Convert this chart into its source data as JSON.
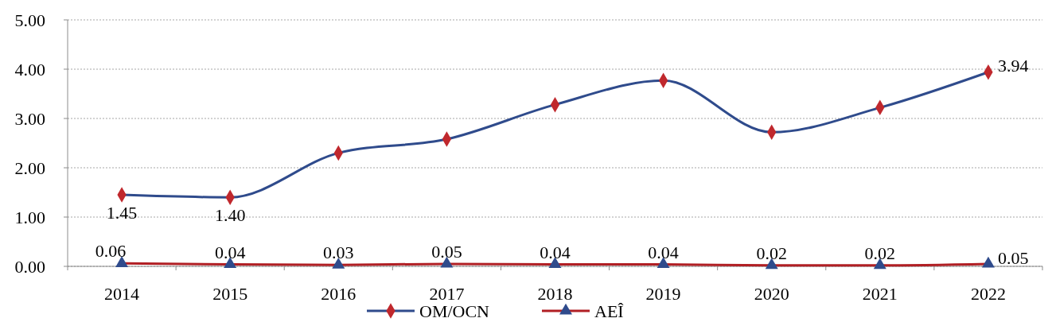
{
  "chart_data": {
    "type": "line",
    "categories": [
      "2014",
      "2015",
      "2016",
      "2017",
      "2018",
      "2019",
      "2020",
      "2021",
      "2022"
    ],
    "ylim": [
      0,
      5
    ],
    "yticks": [
      {
        "value": 0,
        "label": "0.00"
      },
      {
        "value": 1,
        "label": "1.00"
      },
      {
        "value": 2,
        "label": "2.00"
      },
      {
        "value": 3,
        "label": "3.00"
      },
      {
        "value": 4,
        "label": "4.00"
      },
      {
        "value": 5,
        "label": "5.00"
      }
    ],
    "grid": "y",
    "legend": "bottom",
    "line_style": "solid",
    "series": [
      {
        "name": "OM/OCN",
        "color": "#2f4b8c",
        "marker": "diamond",
        "colors": [
          "#c0282d",
          "#c0282d",
          "#c0282d",
          "#c0282d",
          "#c0282d",
          "#c0282d",
          "#c0282d",
          "#c0282d",
          "#c0282d"
        ],
        "values": [
          1.45,
          1.4,
          2.3,
          2.58,
          3.28,
          3.77,
          2.72,
          3.22,
          3.94
        ],
        "value_labels": [
          "1.45",
          "1.40",
          null,
          null,
          null,
          null,
          null,
          null,
          "3.94"
        ]
      },
      {
        "name": "AEÎ",
        "color": "#b11f24",
        "marker": "triangle",
        "colors": [
          "#2f4b8c",
          "#2f4b8c",
          "#2f4b8c",
          "#2f4b8c",
          "#2f4b8c",
          "#2f4b8c",
          "#2f4b8c",
          "#2f4b8c",
          "#2f4b8c"
        ],
        "values": [
          0.06,
          0.04,
          0.03,
          0.05,
          0.04,
          0.04,
          0.02,
          0.02,
          0.05
        ],
        "value_labels": [
          "0.06",
          "0.04",
          "0.03",
          "0.05",
          "0.04",
          "0.04",
          "0.02",
          "0.02",
          "0.05"
        ]
      }
    ]
  }
}
